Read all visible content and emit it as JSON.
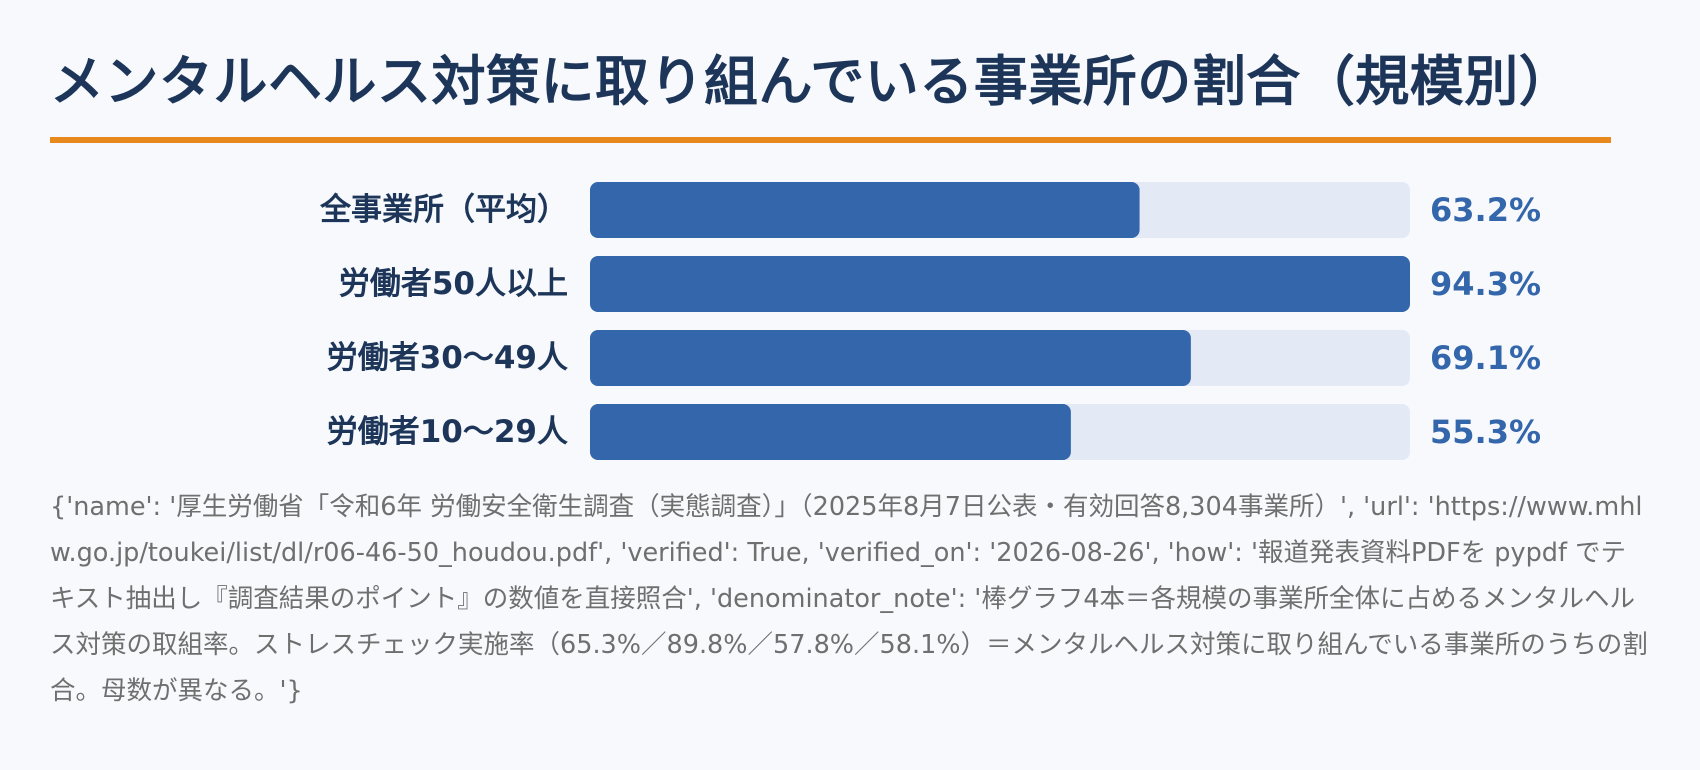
{
  "title": "メンタルヘルス対策に取り組んでいる事業所の割合（規模別）",
  "colors": {
    "accent_rule": "#e8891e",
    "bar_fill": "#3366aa",
    "bar_track": "#e3eaf5",
    "title_text": "#1c3559",
    "value_text": "#3366aa",
    "source_text": "#6f6f6f"
  },
  "chart_data": {
    "type": "bar",
    "orientation": "horizontal",
    "categories": [
      "全事業所（平均）",
      "労働者50人以上",
      "労働者30〜49人",
      "労働者10〜29人"
    ],
    "values": [
      63.2,
      94.3,
      69.1,
      55.3
    ],
    "value_labels": [
      "63.2%",
      "94.3%",
      "69.1%",
      "55.3%"
    ],
    "xlim": [
      0,
      94.3
    ],
    "grid": false,
    "legend": "none"
  },
  "source_note": "{'name': '厚生労働省「令和6年 労働安全衛生調査（実態調査）」（2025年8月7日公表・有効回答8,304事業所）', 'url': 'https://www.mhlw.go.jp/toukei/list/dl/r06-46-50_houdou.pdf', 'verified': True, 'verified_on': '2026-08-26', 'how': '報道発表資料PDFを pypdf でテキスト抽出し『調査結果のポイント』の数値を直接照合', 'denominator_note': '棒グラフ4本＝各規模の事業所全体に占めるメンタルヘルス対策の取組率。ストレスチェック実施率（65.3%／89.8%／57.8%／58.1%）＝メンタルヘルス対策に取り組んでいる事業所のうちの割合。母数が異なる。'}"
}
